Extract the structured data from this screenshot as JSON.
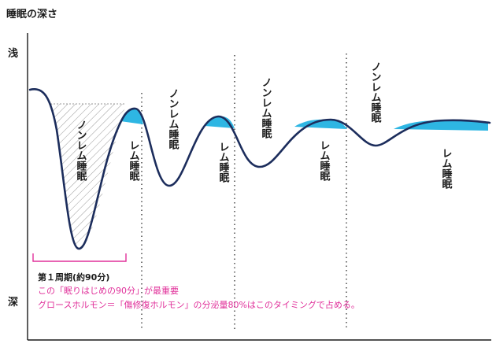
{
  "title": "睡眠の深さ",
  "axis": {
    "shallow": "浅",
    "deep": "深"
  },
  "labels": {
    "nonrem": "ノンレム睡眠",
    "rem": "レム睡眠"
  },
  "cycle_note": {
    "title": "第１周期(約90分)",
    "line1": "この「眠りはじめの90分」が最重要",
    "line2": "グロースホルモン＝「傷修復ホルモン」の分泌量80%はこのタイミングで占める。"
  },
  "colors": {
    "rem_fill": "#2eb6e3",
    "curve": "#1c2d5c",
    "accent": "#e0309a"
  }
}
